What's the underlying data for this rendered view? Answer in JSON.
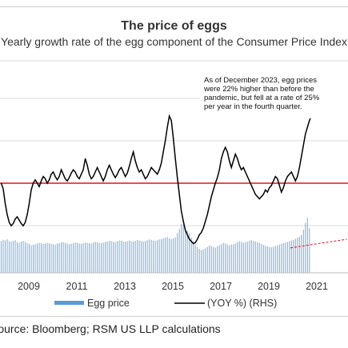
{
  "chart_data": {
    "type": "bar+line",
    "title": "The price of eggs",
    "subtitle": "Yearly growth rate of the egg component of the Consumer Price Index",
    "x_tick_labels": [
      "2009",
      "2011",
      "2013",
      "2015",
      "2017",
      "2019",
      "2021"
    ],
    "legend": [
      {
        "name": "Egg price",
        "style": "bar",
        "color": "#5b9bd5"
      },
      {
        "name": "(YOY %) (RHS)",
        "style": "line",
        "color": "#000000"
      }
    ],
    "annotation": "As of December 2023, egg prices were 22% higher than before the pandemic, but fell at a rate of 25% per year in the fourth quarter.",
    "source": "Source: Bloomberg; RSM US LLP calculations",
    "x_range": [
      2007.8,
      2022.3
    ],
    "egg_price_index": {
      "start": 2007.85,
      "step": 0.0834,
      "values": [
        1.85,
        1.92,
        1.88,
        1.95,
        1.83,
        1.8,
        1.86,
        1.9,
        1.78,
        1.74,
        1.82,
        1.86,
        1.79,
        1.72,
        1.68,
        1.6,
        1.63,
        1.66,
        1.7,
        1.74,
        1.72,
        1.68,
        1.7,
        1.74,
        1.72,
        1.68,
        1.66,
        1.64,
        1.7,
        1.72,
        1.76,
        1.78,
        1.74,
        1.7,
        1.66,
        1.69,
        1.72,
        1.76,
        1.74,
        1.7,
        1.68,
        1.72,
        1.76,
        1.74,
        1.72,
        1.7,
        1.76,
        1.8,
        1.78,
        1.74,
        1.72,
        1.76,
        1.8,
        1.82,
        1.86,
        1.84,
        1.8,
        1.78,
        1.84,
        1.88,
        1.86,
        1.82,
        1.8,
        1.84,
        1.88,
        1.84,
        1.82,
        1.86,
        1.9,
        1.88,
        1.84,
        1.82,
        1.86,
        1.9,
        1.94,
        1.92,
        1.88,
        1.86,
        1.9,
        1.94,
        1.96,
        2.0,
        2.04,
        2.08,
        2.0,
        1.96,
        2.0,
        2.06,
        2.3,
        2.55,
        2.84,
        2.8,
        2.6,
        2.45,
        2.3,
        2.05,
        1.85,
        1.65,
        1.5,
        1.4,
        1.32,
        1.36,
        1.42,
        1.5,
        1.6,
        1.55,
        1.5,
        1.46,
        1.55,
        1.6,
        1.66,
        1.74,
        1.7,
        1.65,
        1.6,
        1.64,
        1.66,
        1.7,
        1.78,
        1.84,
        1.8,
        1.76,
        1.78,
        1.82,
        1.86,
        1.9,
        1.86,
        1.82,
        1.78,
        1.74,
        1.68,
        1.62,
        1.58,
        1.54,
        1.5,
        1.48,
        1.52,
        1.56,
        1.6,
        1.64,
        1.68,
        1.72,
        1.76,
        1.8,
        1.84,
        1.88,
        1.92,
        1.98,
        2.04,
        2.1,
        2.2,
        2.5,
        2.9,
        3.2,
        2.6
      ]
    },
    "yoy_pct": {
      "start": 2007.85,
      "step": 0.0834,
      "values": [
        0.0,
        -5,
        -18,
        -28,
        -35,
        -38,
        -36,
        -32,
        -30,
        -33,
        -36,
        -38,
        -35,
        -28,
        -18,
        -6,
        0,
        3,
        0,
        -3,
        2,
        6,
        4,
        0,
        3,
        8,
        10,
        6,
        3,
        6,
        12,
        8,
        4,
        2,
        5,
        9,
        12,
        10,
        6,
        4,
        8,
        12,
        22,
        16,
        8,
        4,
        6,
        10,
        14,
        10,
        6,
        2,
        6,
        12,
        16,
        12,
        8,
        5,
        8,
        12,
        14,
        10,
        6,
        9,
        15,
        22,
        28,
        20,
        14,
        10,
        12,
        8,
        4,
        6,
        10,
        14,
        12,
        10,
        8,
        12,
        18,
        28,
        38,
        50,
        60,
        56,
        40,
        22,
        5,
        -10,
        -25,
        -34,
        -42,
        -46,
        -50,
        -52,
        -54,
        -53,
        -50,
        -46,
        -44,
        -40,
        -34,
        -28,
        -20,
        -12,
        -6,
        0,
        5,
        12,
        22,
        28,
        32,
        28,
        20,
        14,
        20,
        26,
        22,
        16,
        12,
        14,
        10,
        6,
        2,
        -2,
        -6,
        -10,
        -12,
        -14,
        -12,
        -10,
        -6,
        -8,
        -4,
        -2,
        2,
        6,
        4,
        -2,
        -8,
        -4,
        2,
        6,
        8,
        10,
        6,
        2,
        6,
        14,
        24,
        34,
        44,
        50,
        56,
        60
      ]
    },
    "horizontal_reference_yoy": 0,
    "trend_segment": {
      "x": [
        2019.9,
        2022.25
      ],
      "egg_price_index": [
        1.45,
        1.95
      ]
    }
  }
}
